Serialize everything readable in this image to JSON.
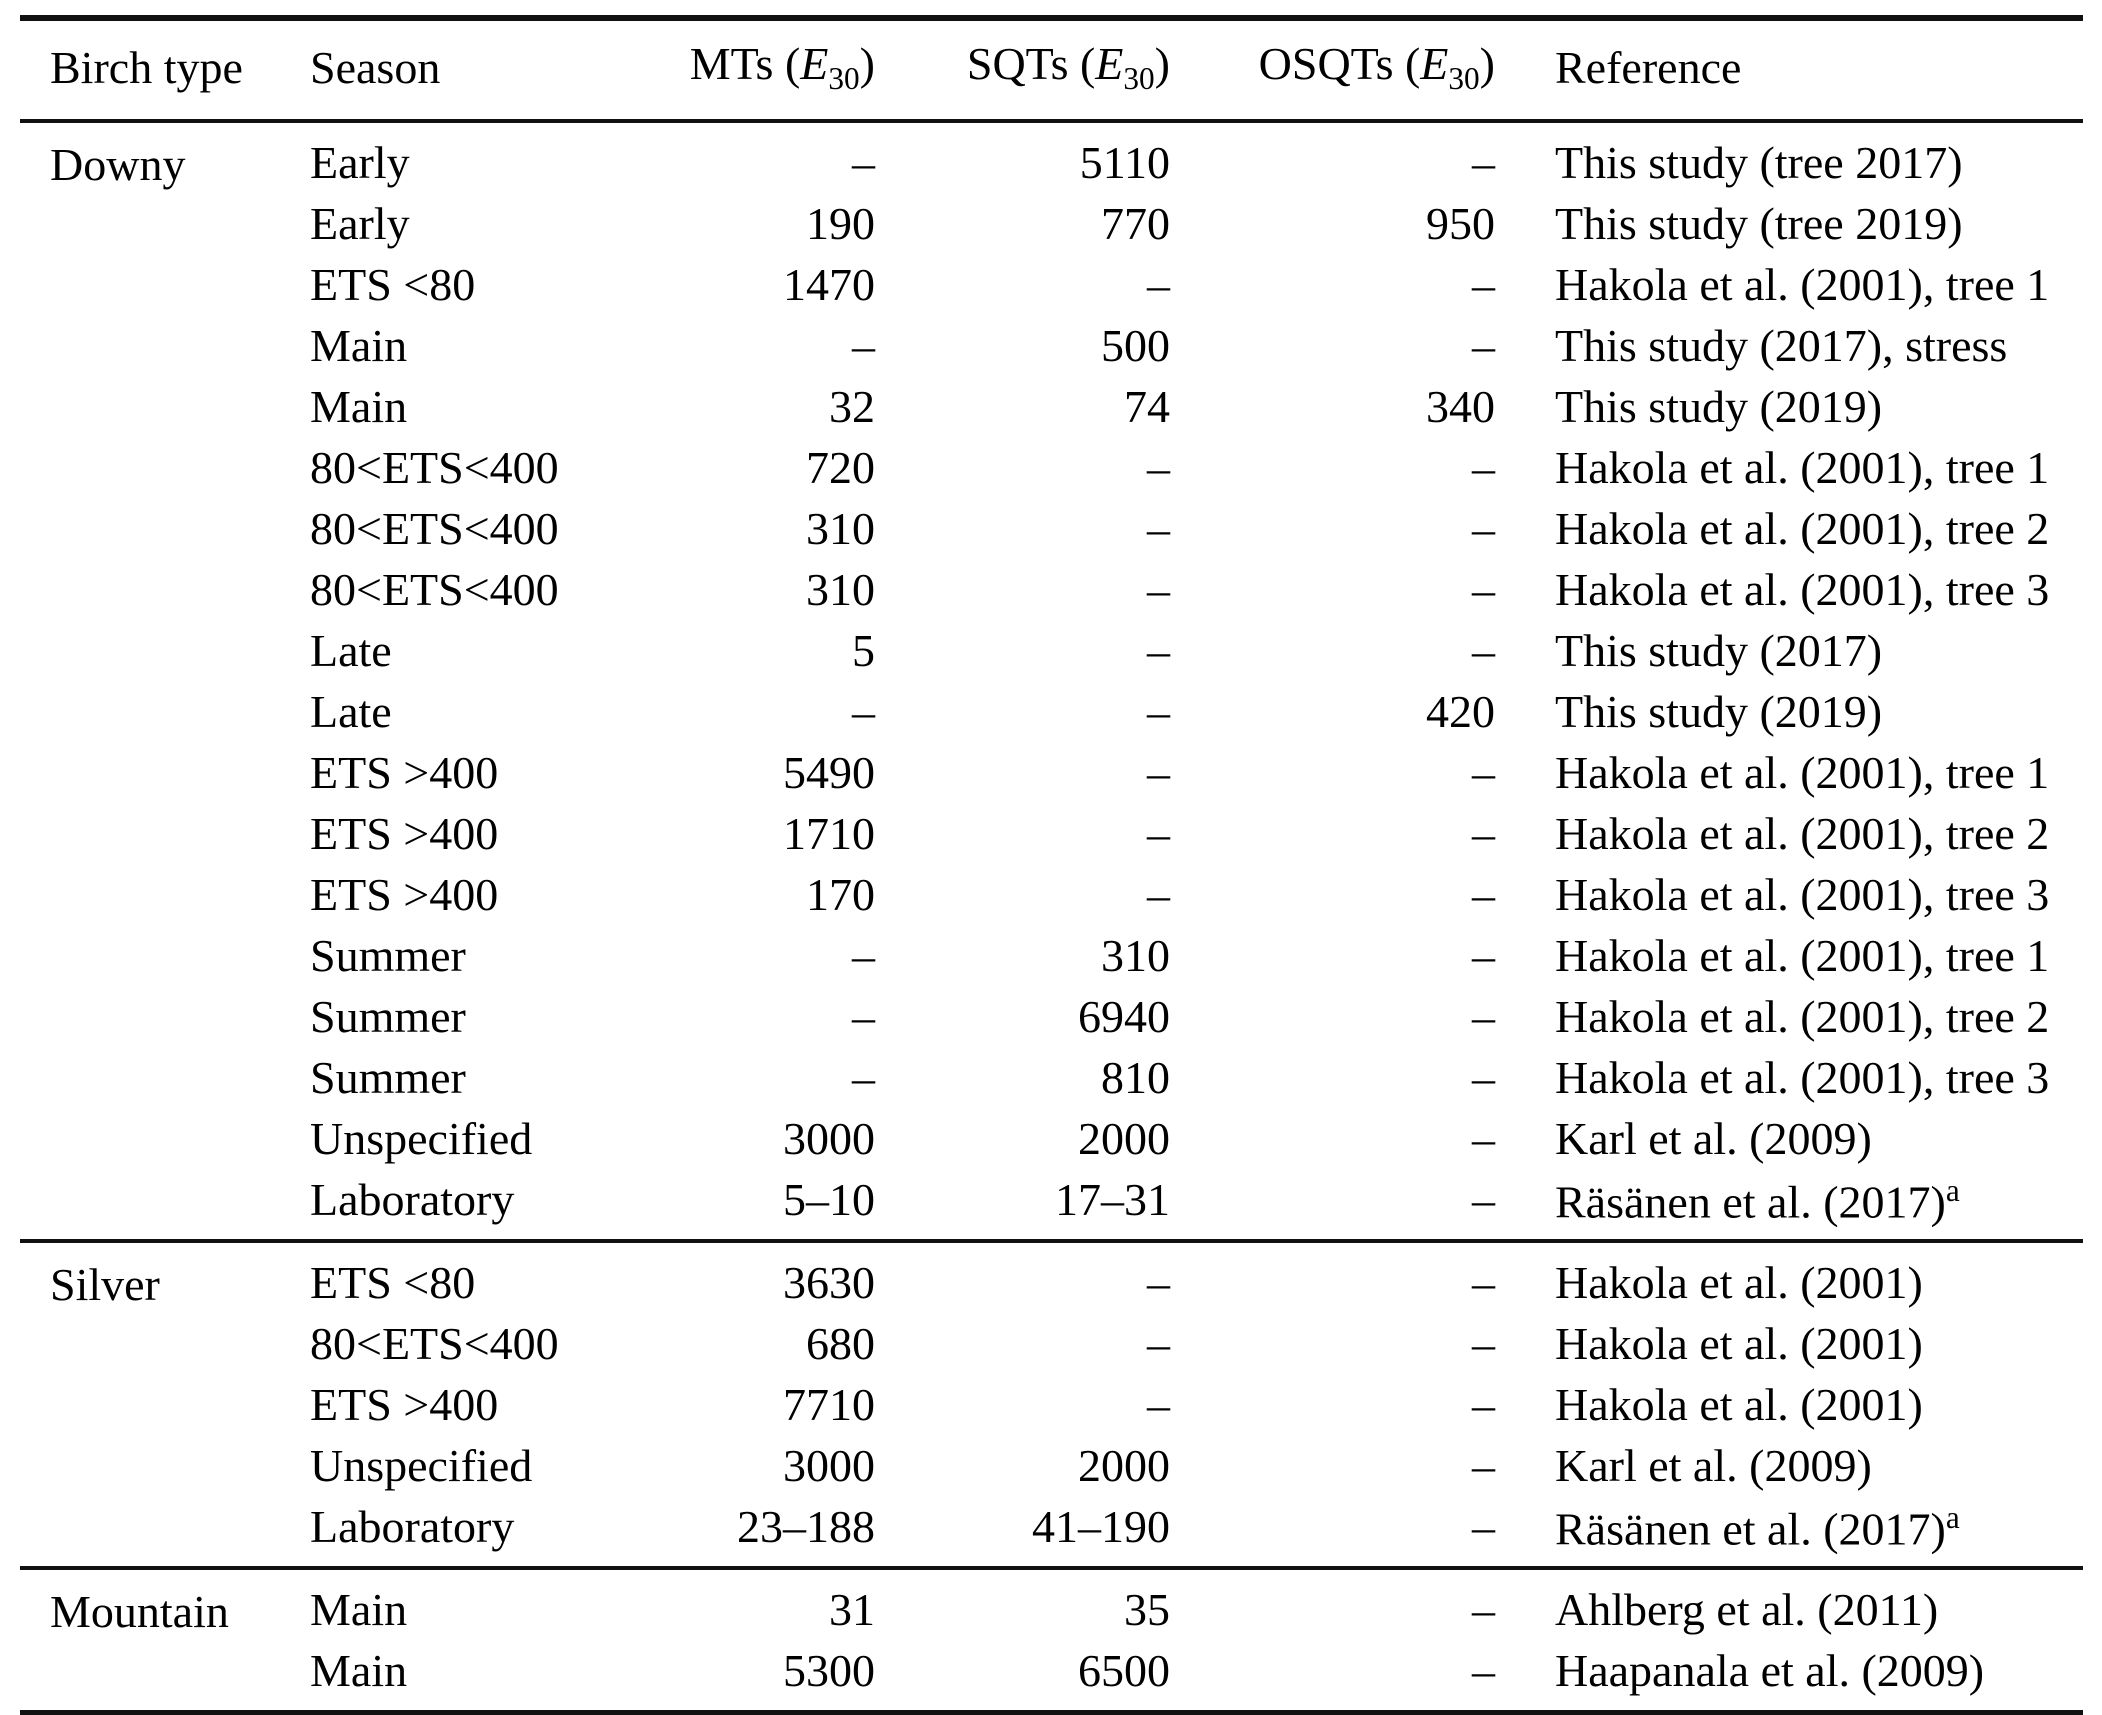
{
  "table": {
    "columns": [
      {
        "key": "birch",
        "label": "Birch type"
      },
      {
        "key": "season",
        "label": "Season"
      },
      {
        "key": "mts",
        "label": "MTs",
        "unit": {
          "open": "(",
          "symbol": "E",
          "sub": "30",
          "close": ")"
        }
      },
      {
        "key": "sqts",
        "label": "SQTs",
        "unit": {
          "open": "(",
          "symbol": "E",
          "sub": "30",
          "close": ")"
        }
      },
      {
        "key": "osqts",
        "label": "OSQTs",
        "unit": {
          "open": "(",
          "symbol": "E",
          "sub": "30",
          "close": ")"
        }
      },
      {
        "key": "reference",
        "label": "Reference"
      }
    ],
    "sections": [
      {
        "birch_type": "Downy",
        "rows": [
          {
            "season": "Early",
            "mts": "–",
            "sqts": "5110",
            "osqts": "–",
            "reference": "This study (tree 2017)"
          },
          {
            "season": "Early",
            "mts": "190",
            "sqts": "770",
            "osqts": "950",
            "reference": "This study (tree 2019)"
          },
          {
            "season": "ETS <80",
            "mts": "1470",
            "sqts": "–",
            "osqts": "–",
            "reference": "Hakola et al. (2001), tree 1"
          },
          {
            "season": "Main",
            "mts": "–",
            "sqts": "500",
            "osqts": "–",
            "reference": "This study (2017), stress"
          },
          {
            "season": "Main",
            "mts": "32",
            "sqts": "74",
            "osqts": "340",
            "reference": "This study (2019)"
          },
          {
            "season": "80<ETS<400",
            "mts": "720",
            "sqts": "–",
            "osqts": "–",
            "reference": "Hakola et al. (2001), tree 1"
          },
          {
            "season": "80<ETS<400",
            "mts": "310",
            "sqts": "–",
            "osqts": "–",
            "reference": "Hakola et al. (2001), tree 2"
          },
          {
            "season": "80<ETS<400",
            "mts": "310",
            "sqts": "–",
            "osqts": "–",
            "reference": "Hakola et al. (2001), tree 3"
          },
          {
            "season": "Late",
            "mts": "5",
            "sqts": "–",
            "osqts": "–",
            "reference": "This study (2017)"
          },
          {
            "season": "Late",
            "mts": "–",
            "sqts": "–",
            "osqts": "420",
            "reference": "This study (2019)"
          },
          {
            "season": "ETS >400",
            "mts": "5490",
            "sqts": "–",
            "osqts": "–",
            "reference": "Hakola et al. (2001), tree 1"
          },
          {
            "season": "ETS >400",
            "mts": "1710",
            "sqts": "–",
            "osqts": "–",
            "reference": "Hakola et al. (2001), tree 2"
          },
          {
            "season": "ETS >400",
            "mts": "170",
            "sqts": "–",
            "osqts": "–",
            "reference": "Hakola et al. (2001), tree 3"
          },
          {
            "season": "Summer",
            "mts": "–",
            "sqts": "310",
            "osqts": "–",
            "reference": "Hakola et al. (2001), tree 1"
          },
          {
            "season": "Summer",
            "mts": "–",
            "sqts": "6940",
            "osqts": "–",
            "reference": "Hakola et al. (2001), tree 2"
          },
          {
            "season": "Summer",
            "mts": "–",
            "sqts": "810",
            "osqts": "–",
            "reference": "Hakola et al. (2001), tree 3"
          },
          {
            "season": "Unspecified",
            "mts": "3000",
            "sqts": "2000",
            "osqts": "–",
            "reference": "Karl et al. (2009)"
          },
          {
            "season": "Laboratory",
            "mts": "5–10",
            "sqts": "17–31",
            "osqts": "–",
            "reference": "Räsänen et al. (2017)",
            "reference_sup": "a"
          }
        ]
      },
      {
        "birch_type": "Silver",
        "rows": [
          {
            "season": "ETS <80",
            "mts": "3630",
            "sqts": "–",
            "osqts": "–",
            "reference": "Hakola et al. (2001)"
          },
          {
            "season": "80<ETS<400",
            "mts": "680",
            "sqts": "–",
            "osqts": "–",
            "reference": "Hakola et al. (2001)"
          },
          {
            "season": "ETS >400",
            "mts": "7710",
            "sqts": "–",
            "osqts": "–",
            "reference": "Hakola et al. (2001)"
          },
          {
            "season": "Unspecified",
            "mts": "3000",
            "sqts": "2000",
            "osqts": "–",
            "reference": "Karl et al. (2009)"
          },
          {
            "season": "Laboratory",
            "mts": "23–188",
            "sqts": "41–190",
            "osqts": "–",
            "reference": "Räsänen et al. (2017)",
            "reference_sup": "a"
          }
        ]
      },
      {
        "birch_type": "Mountain",
        "rows": [
          {
            "season": "Main",
            "mts": "31",
            "sqts": "35",
            "osqts": "–",
            "reference": "Ahlberg et al. (2011)"
          },
          {
            "season": "Main",
            "mts": "5300",
            "sqts": "6500",
            "osqts": "–",
            "reference": "Haapanala et al. (2009)"
          }
        ]
      }
    ]
  }
}
